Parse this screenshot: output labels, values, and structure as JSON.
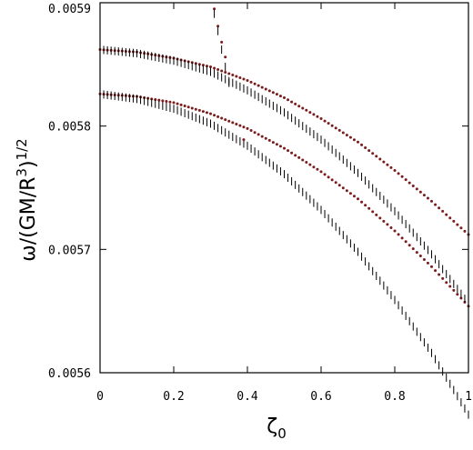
{
  "chart_data": {
    "type": "scatter",
    "title": "",
    "xlabel": "ζ",
    "xlabel_sub": "0",
    "ylabel": "ω/(GM/R",
    "ylabel_sup": "3",
    "ylabel_tail": ")",
    "ylabel_exp": "1/2",
    "xlim": [
      0,
      1
    ],
    "ylim": [
      0.0056,
      0.0059
    ],
    "x_ticks": [
      "0",
      "0.2",
      "0.4",
      "0.6",
      "0.8",
      "1"
    ],
    "x_tick_values": [
      0,
      0.2,
      0.4,
      0.6,
      0.8,
      1
    ],
    "y_ticks": [
      "0.0056",
      "0.0057",
      "0.0058",
      "0.0059"
    ],
    "y_tick_values": [
      0.0056,
      0.0057,
      0.0058,
      0.0059
    ],
    "grid": false,
    "colors": {
      "dot": "#7a1c1c",
      "bar": "#000000"
    },
    "series": [
      {
        "kind": "dots",
        "x": [
          0,
          0.1,
          0.2,
          0.3,
          0.4,
          0.5,
          0.6,
          0.7,
          0.8,
          0.9,
          1.0
        ],
        "y": [
          0.005862,
          0.00586,
          0.005855,
          0.005848,
          0.005837,
          0.005823,
          0.005806,
          0.005787,
          0.005764,
          0.005739,
          0.005712
        ]
      },
      {
        "kind": "dots",
        "x": [
          0,
          0.1,
          0.2,
          0.3,
          0.4,
          0.5,
          0.6,
          0.7,
          0.8,
          0.9,
          1.0
        ],
        "y": [
          0.005826,
          0.005824,
          0.005819,
          0.00581,
          0.005798,
          0.005782,
          0.005763,
          0.005741,
          0.005715,
          0.005686,
          0.005654
        ]
      },
      {
        "kind": "bars",
        "x": [
          0,
          0.1,
          0.2,
          0.3,
          0.4,
          0.5,
          0.6,
          0.7,
          0.8,
          0.9,
          1.0
        ],
        "y": [
          0.005862,
          0.005859,
          0.005853,
          0.005844,
          0.005829,
          0.005811,
          0.005789,
          0.005762,
          0.005731,
          0.005696,
          0.005656
        ]
      },
      {
        "kind": "bars",
        "x": [
          0,
          0.1,
          0.2,
          0.3,
          0.4,
          0.5,
          0.6,
          0.7,
          0.8,
          0.9,
          1.0
        ],
        "y": [
          0.005826,
          0.005822,
          0.005814,
          0.005802,
          0.005784,
          0.005761,
          0.005732,
          0.005698,
          0.005659,
          0.005616,
          0.005566
        ]
      },
      {
        "kind": "scattered-dots",
        "x": [
          0.31,
          0.32,
          0.33,
          0.34,
          0.39
        ],
        "y": [
          0.005895,
          0.005881,
          0.005868,
          0.005856,
          0.005789
        ]
      },
      {
        "kind": "scattered-bars",
        "x": [
          0.31,
          0.32,
          0.33,
          0.34,
          0.35
        ],
        "y": [
          0.005891,
          0.005877,
          0.005862,
          0.005848,
          0.005835
        ]
      }
    ]
  }
}
